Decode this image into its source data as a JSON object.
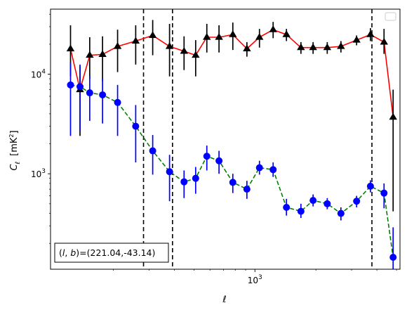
{
  "chart_data": {
    "type": "scatter",
    "title": "",
    "xlabel": "ℓ",
    "ylabel": "C_ℓ [mK²]",
    "xscale": "log",
    "yscale": "log",
    "xlim": [
      98,
      5200
    ],
    "ylim": [
      110,
      45000
    ],
    "x_tick_labels": [
      {
        "value": 1000,
        "base": "10",
        "exp": "3"
      }
    ],
    "y_tick_labels": [
      {
        "value": 1000,
        "base": "10",
        "exp": "3"
      },
      {
        "value": 10000,
        "base": "10",
        "exp": "4"
      }
    ],
    "grid": false,
    "legend": {
      "placement": "top-right",
      "entries": []
    },
    "annotation": {
      "text": "(l, b)=(221.04,-43.14)",
      "placement": "bottom-left"
    },
    "vlines": [
      {
        "x": 282,
        "style": "dashed",
        "color": "#000000"
      },
      {
        "x": 392,
        "style": "dashed",
        "color": "#000000"
      },
      {
        "x": 3780,
        "style": "dashed",
        "color": "#000000"
      }
    ],
    "series": [
      {
        "marker": "triangle",
        "marker_color": "#000000",
        "line_color": "#ff0000",
        "line_style": "solid",
        "errorbar_color": "#000000",
        "points": [
          {
            "x": 123,
            "y": 18000,
            "lo": 9500,
            "hi": 31000
          },
          {
            "x": 137,
            "y": 7000,
            "lo": 2400,
            "hi": 12000
          },
          {
            "x": 153,
            "y": 15500,
            "lo": 9000,
            "hi": 23500
          },
          {
            "x": 177,
            "y": 15800,
            "lo": 8500,
            "hi": 24000
          },
          {
            "x": 210,
            "y": 19000,
            "lo": 10500,
            "hi": 28000
          },
          {
            "x": 258,
            "y": 21500,
            "lo": 12500,
            "hi": 31000
          },
          {
            "x": 313,
            "y": 24500,
            "lo": 15500,
            "hi": 35000
          },
          {
            "x": 379,
            "y": 19000,
            "lo": 9500,
            "hi": 32000
          },
          {
            "x": 447,
            "y": 17000,
            "lo": 11000,
            "hi": 24000
          },
          {
            "x": 510,
            "y": 15500,
            "lo": 9500,
            "hi": 22000
          },
          {
            "x": 579,
            "y": 23500,
            "lo": 16500,
            "hi": 32000
          },
          {
            "x": 665,
            "y": 23500,
            "lo": 16500,
            "hi": 31000
          },
          {
            "x": 778,
            "y": 25000,
            "lo": 17500,
            "hi": 33000
          },
          {
            "x": 913,
            "y": 18000,
            "lo": 15000,
            "hi": 21000
          },
          {
            "x": 1053,
            "y": 23500,
            "lo": 18500,
            "hi": 28500
          },
          {
            "x": 1230,
            "y": 28000,
            "lo": 23000,
            "hi": 33500
          },
          {
            "x": 1431,
            "y": 25000,
            "lo": 21500,
            "hi": 28500
          },
          {
            "x": 1687,
            "y": 18500,
            "lo": 16000,
            "hi": 21000
          },
          {
            "x": 1937,
            "y": 18500,
            "lo": 16000,
            "hi": 21000
          },
          {
            "x": 2275,
            "y": 18500,
            "lo": 16000,
            "hi": 21000
          },
          {
            "x": 2658,
            "y": 19000,
            "lo": 16500,
            "hi": 21500
          },
          {
            "x": 3176,
            "y": 22000,
            "lo": 19500,
            "hi": 24500
          },
          {
            "x": 3717,
            "y": 25000,
            "lo": 21500,
            "hi": 29000
          },
          {
            "x": 4338,
            "y": 21000,
            "lo": 16000,
            "hi": 28500
          },
          {
            "x": 4810,
            "y": 3700,
            "lo": 420,
            "hi": 7000
          }
        ]
      },
      {
        "marker": "circle",
        "marker_color": "#0000ff",
        "line_color": "#008000",
        "line_style": "dashed",
        "errorbar_color": "#0000ff",
        "points": [
          {
            "x": 123,
            "y": 7800,
            "lo": 2400,
            "hi": 13000
          },
          {
            "x": 137,
            "y": 7500,
            "lo": 2700,
            "hi": 12500
          },
          {
            "x": 153,
            "y": 6500,
            "lo": 3400,
            "hi": 9600
          },
          {
            "x": 177,
            "y": 6200,
            "lo": 3200,
            "hi": 9100
          },
          {
            "x": 210,
            "y": 5200,
            "lo": 2400,
            "hi": 7800
          },
          {
            "x": 258,
            "y": 3000,
            "lo": 1300,
            "hi": 4900
          },
          {
            "x": 313,
            "y": 1700,
            "lo": 980,
            "hi": 2450
          },
          {
            "x": 379,
            "y": 1050,
            "lo": 530,
            "hi": 1550
          },
          {
            "x": 447,
            "y": 830,
            "lo": 570,
            "hi": 1080
          },
          {
            "x": 510,
            "y": 900,
            "lo": 630,
            "hi": 1170
          },
          {
            "x": 579,
            "y": 1500,
            "lo": 1080,
            "hi": 1920
          },
          {
            "x": 665,
            "y": 1350,
            "lo": 1000,
            "hi": 1700
          },
          {
            "x": 778,
            "y": 820,
            "lo": 640,
            "hi": 1000
          },
          {
            "x": 913,
            "y": 700,
            "lo": 560,
            "hi": 850
          },
          {
            "x": 1053,
            "y": 1150,
            "lo": 980,
            "hi": 1350
          },
          {
            "x": 1230,
            "y": 1100,
            "lo": 930,
            "hi": 1300
          },
          {
            "x": 1431,
            "y": 460,
            "lo": 380,
            "hi": 560
          },
          {
            "x": 1687,
            "y": 420,
            "lo": 360,
            "hi": 500
          },
          {
            "x": 1937,
            "y": 540,
            "lo": 470,
            "hi": 620
          },
          {
            "x": 2275,
            "y": 500,
            "lo": 440,
            "hi": 570
          },
          {
            "x": 2658,
            "y": 400,
            "lo": 340,
            "hi": 460
          },
          {
            "x": 3176,
            "y": 530,
            "lo": 460,
            "hi": 600
          },
          {
            "x": 3717,
            "y": 750,
            "lo": 650,
            "hi": 860
          },
          {
            "x": 4338,
            "y": 640,
            "lo": 450,
            "hi": 800
          },
          {
            "x": 4810,
            "y": 145,
            "lo": 100,
            "hi": 290
          }
        ]
      }
    ]
  }
}
